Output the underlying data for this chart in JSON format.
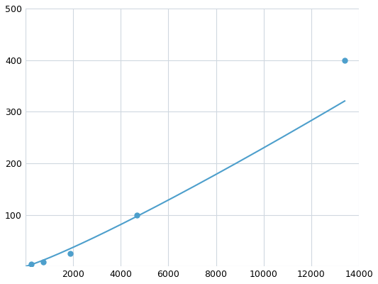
{
  "x": [
    250,
    750,
    1875,
    4688,
    13400
  ],
  "y": [
    5,
    9,
    25,
    100,
    400
  ],
  "line_color": "#4d9fcc",
  "marker_color": "#4d9fcc",
  "marker_size": 5,
  "xlim": [
    0,
    14000
  ],
  "ylim": [
    0,
    500
  ],
  "xticks": [
    0,
    2000,
    4000,
    6000,
    8000,
    10000,
    12000,
    14000
  ],
  "yticks": [
    0,
    100,
    200,
    300,
    400,
    500
  ],
  "grid_color": "#d0d8e0",
  "background_color": "#ffffff",
  "linewidth": 1.5
}
